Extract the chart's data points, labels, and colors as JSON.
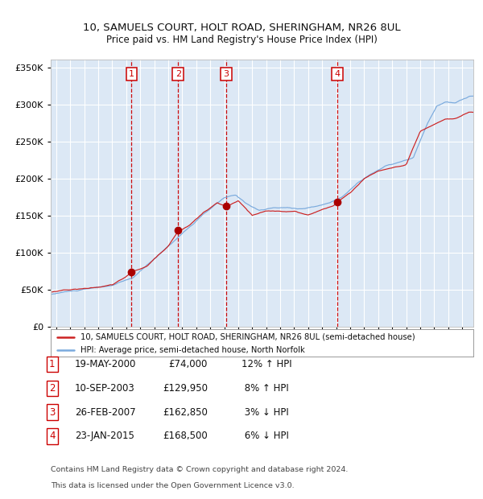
{
  "title": "10, SAMUELS COURT, HOLT ROAD, SHERINGHAM, NR26 8UL",
  "subtitle": "Price paid vs. HM Land Registry's House Price Index (HPI)",
  "sale_label": "10, SAMUELS COURT, HOLT ROAD, SHERINGHAM, NR26 8UL (semi-detached house)",
  "hpi_label": "HPI: Average price, semi-detached house, North Norfolk",
  "footer1": "Contains HM Land Registry data © Crown copyright and database right 2024.",
  "footer2": "This data is licensed under the Open Government Licence v3.0.",
  "transaction_prices": [
    74000,
    129950,
    162850,
    168500
  ],
  "trans_dates": [
    2000.38,
    2003.7,
    2007.15,
    2015.07
  ],
  "table_rows": [
    [
      "1",
      "19-MAY-2000",
      "£74,000",
      "12% ↑ HPI"
    ],
    [
      "2",
      "10-SEP-2003",
      "£129,950",
      " 8% ↑ HPI"
    ],
    [
      "3",
      "26-FEB-2007",
      "£162,850",
      " 3% ↓ HPI"
    ],
    [
      "4",
      "23-JAN-2015",
      "£168,500",
      " 6% ↓ HPI"
    ]
  ],
  "background_color": "#ffffff",
  "plot_bg_color": "#dce8f5",
  "grid_color": "#ffffff",
  "hpi_line_color": "#7aaadd",
  "price_line_color": "#cc2222",
  "dot_color": "#aa0000",
  "vline_color": "#cc0000",
  "box_color": "#cc0000",
  "ylim": [
    0,
    360000
  ],
  "yticks": [
    0,
    50000,
    100000,
    150000,
    200000,
    250000,
    300000,
    350000
  ],
  "xlim_start": 1994.6,
  "xlim_end": 2024.8,
  "xticks": [
    1995,
    1996,
    1997,
    1998,
    1999,
    2000,
    2001,
    2002,
    2003,
    2004,
    2005,
    2006,
    2007,
    2008,
    2009,
    2010,
    2011,
    2012,
    2013,
    2014,
    2015,
    2016,
    2017,
    2018,
    2019,
    2020,
    2021,
    2022,
    2023,
    2024
  ]
}
